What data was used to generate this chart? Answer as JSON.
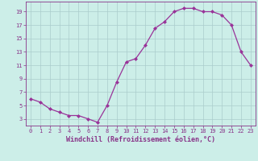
{
  "x": [
    0,
    1,
    2,
    3,
    4,
    5,
    6,
    7,
    8,
    9,
    10,
    11,
    12,
    13,
    14,
    15,
    16,
    17,
    18,
    19,
    20,
    21,
    22,
    23
  ],
  "y": [
    6.0,
    5.5,
    4.5,
    4.0,
    3.5,
    3.5,
    3.0,
    2.5,
    5.0,
    8.5,
    11.5,
    12.0,
    14.0,
    16.5,
    17.5,
    19.0,
    19.5,
    19.5,
    19.0,
    19.0,
    18.5,
    17.0,
    13.0,
    11.0
  ],
  "line_color": "#993399",
  "marker": "D",
  "markersize": 2.0,
  "linewidth": 0.9,
  "bg_color": "#cceee8",
  "grid_color": "#aacccc",
  "xlabel": "Windchill (Refroidissement éolien,°C)",
  "xlim": [
    -0.5,
    23.5
  ],
  "ylim": [
    2.0,
    20.5
  ],
  "xticks": [
    0,
    1,
    2,
    3,
    4,
    5,
    6,
    7,
    8,
    9,
    10,
    11,
    12,
    13,
    14,
    15,
    16,
    17,
    18,
    19,
    20,
    21,
    22,
    23
  ],
  "yticks": [
    3,
    5,
    7,
    9,
    11,
    13,
    15,
    17,
    19
  ],
  "tick_color": "#883388",
  "label_color": "#883388",
  "tick_fontsize": 5.0,
  "xlabel_fontsize": 6.0
}
